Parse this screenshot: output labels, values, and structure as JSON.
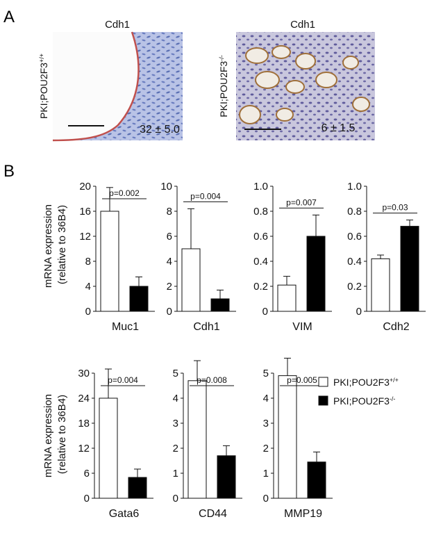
{
  "panel_a": {
    "letter": "A",
    "images": [
      {
        "title": "Cdh1",
        "genotype_base": "PKI;POU2F3",
        "genotype_sup": "+/+",
        "value_text": "32 ± 5.0"
      },
      {
        "title": "Cdh1",
        "genotype_base": "PKI;POU2F3",
        "genotype_sup": "-/-",
        "value_text": "6 ± 1.5"
      }
    ]
  },
  "panel_b": {
    "letter": "B",
    "ylabel_line1": "mRNA expression",
    "ylabel_line2": "(relative to 36B4)",
    "legend": [
      {
        "base": "PKI;POU2F3",
        "sup": "+/+",
        "fill": "#ffffff"
      },
      {
        "base": "PKI;POU2F3",
        "sup": "-/-",
        "fill": "#000000"
      }
    ]
  },
  "chart_data": [
    {
      "type": "bar",
      "xlabel": "Muc1",
      "ylim": [
        0,
        20
      ],
      "yticks": [
        "0",
        "4",
        "8",
        "12",
        "16",
        "20"
      ],
      "series": [
        {
          "values": [
            16,
            4
          ],
          "errors": [
            3.8,
            1.5
          ]
        }
      ],
      "pvalue": "p=0.002"
    },
    {
      "type": "bar",
      "xlabel": "Cdh1",
      "ylim": [
        0,
        10
      ],
      "yticks": [
        "0",
        "2",
        "4",
        "6",
        "8",
        "10"
      ],
      "series": [
        {
          "values": [
            5,
            1
          ],
          "errors": [
            3.2,
            0.7
          ]
        }
      ],
      "pvalue": "p=0.004"
    },
    {
      "type": "bar",
      "xlabel": "VIM",
      "ylim": [
        0,
        1.0
      ],
      "yticks": [
        "0",
        "0.2",
        "0.4",
        "0.6",
        "0.8",
        "1.0"
      ],
      "series": [
        {
          "values": [
            0.21,
            0.6
          ],
          "errors": [
            0.07,
            0.17
          ]
        }
      ],
      "pvalue": "p=0.007"
    },
    {
      "type": "bar",
      "xlabel": "Cdh2",
      "ylim": [
        0,
        1.0
      ],
      "yticks": [
        "0",
        "0.2",
        "0.4",
        "0.6",
        "0.8",
        "1.0"
      ],
      "series": [
        {
          "values": [
            0.42,
            0.68
          ],
          "errors": [
            0.03,
            0.05
          ]
        }
      ],
      "pvalue": "p=0.03"
    },
    {
      "type": "bar",
      "xlabel": "Gata6",
      "ylim": [
        0,
        30
      ],
      "yticks": [
        "0",
        "6",
        "12",
        "18",
        "24",
        "30"
      ],
      "series": [
        {
          "values": [
            24,
            5
          ],
          "errors": [
            7,
            2
          ]
        }
      ],
      "pvalue": "p=0.004"
    },
    {
      "type": "bar",
      "xlabel": "CD44",
      "ylim": [
        0,
        5
      ],
      "yticks": [
        "0",
        "1",
        "2",
        "3",
        "4",
        "5"
      ],
      "series": [
        {
          "values": [
            4.7,
            1.7
          ],
          "errors": [
            0.8,
            0.4
          ]
        }
      ],
      "pvalue": "p=0.008"
    },
    {
      "type": "bar",
      "xlabel": "MMP19",
      "ylim": [
        0,
        5
      ],
      "yticks": [
        "0",
        "1",
        "2",
        "3",
        "4",
        "5"
      ],
      "series": [
        {
          "values": [
            4.9,
            1.45
          ],
          "errors": [
            0.7,
            0.4
          ]
        }
      ],
      "pvalue": "p=0.005"
    }
  ]
}
